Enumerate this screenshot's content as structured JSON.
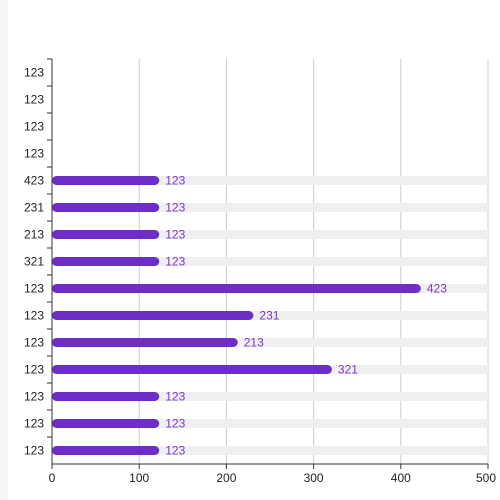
{
  "chart_data": {
    "type": "bar",
    "orientation": "horizontal",
    "categories": [
      "123",
      "123",
      "123",
      "123",
      "423",
      "231",
      "213",
      "321",
      "123",
      "123",
      "123",
      "123",
      "123",
      "123",
      "123"
    ],
    "values": [
      null,
      null,
      null,
      null,
      123,
      123,
      123,
      123,
      423,
      231,
      213,
      321,
      123,
      123,
      123
    ],
    "data_labels": [
      "",
      "",
      "",
      "",
      "123",
      "123",
      "123",
      "123",
      "423",
      "231",
      "213",
      "321",
      "123",
      "123",
      "123"
    ],
    "xlim": [
      0,
      500
    ],
    "x_ticks": [
      0,
      100,
      200,
      300,
      400,
      500
    ],
    "title": "",
    "xlabel": "",
    "ylabel": "",
    "grid": "vertical",
    "show_background_bars": true,
    "colors": {
      "bar": "#6f2dc8",
      "label": "#7b35d0",
      "track": "#efefef",
      "grid": "#cccccc",
      "axis": "#333333"
    }
  }
}
